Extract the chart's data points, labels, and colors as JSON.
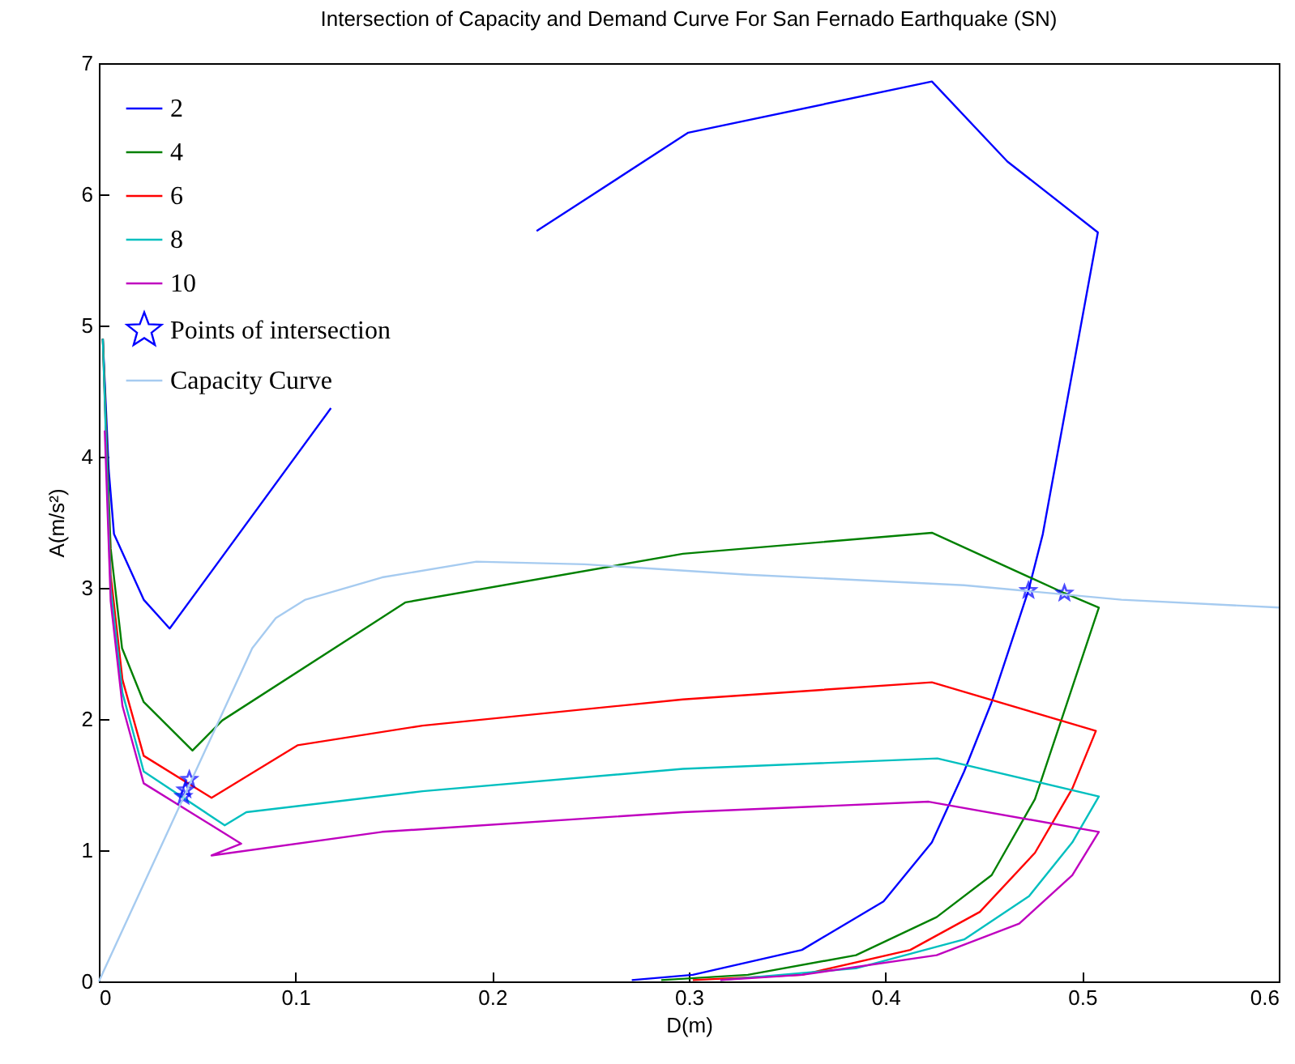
{
  "chart_data": {
    "type": "line",
    "title": "Intersection of Capacity and Demand Curve For San Fernado Earthquake (SN)",
    "xlabel": "D(m)",
    "ylabel": "A(m/s²)",
    "xlim": [
      0,
      0.6
    ],
    "ylim": [
      0,
      7
    ],
    "xticks": [
      0,
      0.1,
      0.2,
      0.3,
      0.4,
      0.5,
      0.6
    ],
    "yticks": [
      0,
      1,
      2,
      3,
      4,
      5,
      6,
      7
    ],
    "grid": false,
    "legend": "top left",
    "series": [
      {
        "name": "2",
        "color": "#0000ff",
        "x": [
          0.002,
          0.005,
          0.0077,
          0.0228,
          0.036,
          0.118,
          0.17,
          0.2226,
          0.2997,
          0.4236,
          0.462,
          0.508,
          0.48,
          0.4727,
          0.454,
          0.44,
          0.4236,
          0.399,
          0.3575,
          0.302,
          0.271
        ],
        "values": [
          4.9,
          3.9,
          3.41,
          2.91,
          2.69,
          4.37,
          null,
          5.72,
          6.47,
          6.86,
          6.25,
          5.71,
          3.41,
          2.98,
          2.13,
          1.6,
          1.06,
          0.61,
          0.24,
          0.05,
          0.01
        ]
      },
      {
        "name": "4",
        "color": "#008000",
        "x": [
          0.002,
          0.006,
          0.0118,
          0.0228,
          0.0476,
          0.0628,
          0.156,
          0.297,
          0.4236,
          0.491,
          0.5085,
          0.4925,
          0.476,
          0.454,
          0.426,
          0.385,
          0.33,
          0.286
        ],
        "values": [
          4.9,
          3.3,
          2.54,
          2.13,
          1.76,
          1.99,
          2.89,
          3.26,
          3.42,
          2.96,
          2.85,
          2.13,
          1.39,
          0.81,
          0.49,
          0.2,
          0.05,
          0.01
        ]
      },
      {
        "name": "6",
        "color": "#ff0000",
        "x": [
          0.002,
          0.006,
          0.012,
          0.0228,
          0.0573,
          0.101,
          0.1646,
          0.297,
          0.4236,
          0.507,
          0.495,
          0.476,
          0.448,
          0.4126,
          0.3575,
          0.302
        ],
        "values": [
          4.9,
          3.1,
          2.3,
          1.72,
          1.4,
          1.8,
          1.95,
          2.15,
          2.28,
          1.91,
          1.47,
          0.98,
          0.53,
          0.24,
          0.05,
          0.01
        ]
      },
      {
        "name": "8",
        "color": "#00bfbf",
        "x": [
          0.002,
          0.006,
          0.012,
          0.0228,
          0.064,
          0.075,
          0.1646,
          0.297,
          0.4264,
          0.5085,
          0.495,
          0.473,
          0.44,
          0.385,
          0.316
        ],
        "values": [
          4.9,
          3.0,
          2.2,
          1.6,
          1.19,
          1.29,
          1.45,
          1.62,
          1.7,
          1.41,
          1.06,
          0.65,
          0.32,
          0.1,
          0.01
        ]
      },
      {
        "name": "10",
        "color": "#bf00bf",
        "x": [
          0.003,
          0.006,
          0.012,
          0.0228,
          0.0724,
          0.0573,
          0.144,
          0.297,
          0.422,
          0.5085,
          0.495,
          0.468,
          0.426,
          0.3575,
          0.316
        ],
        "values": [
          4.2,
          2.9,
          2.1,
          1.51,
          1.05,
          0.96,
          1.14,
          1.29,
          1.37,
          1.14,
          0.81,
          0.44,
          0.2,
          0.05,
          0.01
        ]
      },
      {
        "name": "Points of intersection",
        "type": "scatter",
        "marker": "star",
        "color": "#0000ff",
        "x": [
          0.046,
          0.044,
          0.043,
          0.4727,
          0.491
        ],
        "values": [
          1.54,
          1.46,
          1.41,
          2.98,
          2.96
        ]
      },
      {
        "name": "Capacity Curve",
        "color": "#a6cbf0",
        "x": [
          0,
          0.078,
          0.09,
          0.105,
          0.144,
          0.192,
          0.247,
          0.33,
          0.44,
          0.52,
          0.6
        ],
        "values": [
          0,
          2.54,
          2.77,
          2.91,
          3.08,
          3.2,
          3.18,
          3.1,
          3.02,
          2.91,
          2.85
        ]
      }
    ]
  }
}
